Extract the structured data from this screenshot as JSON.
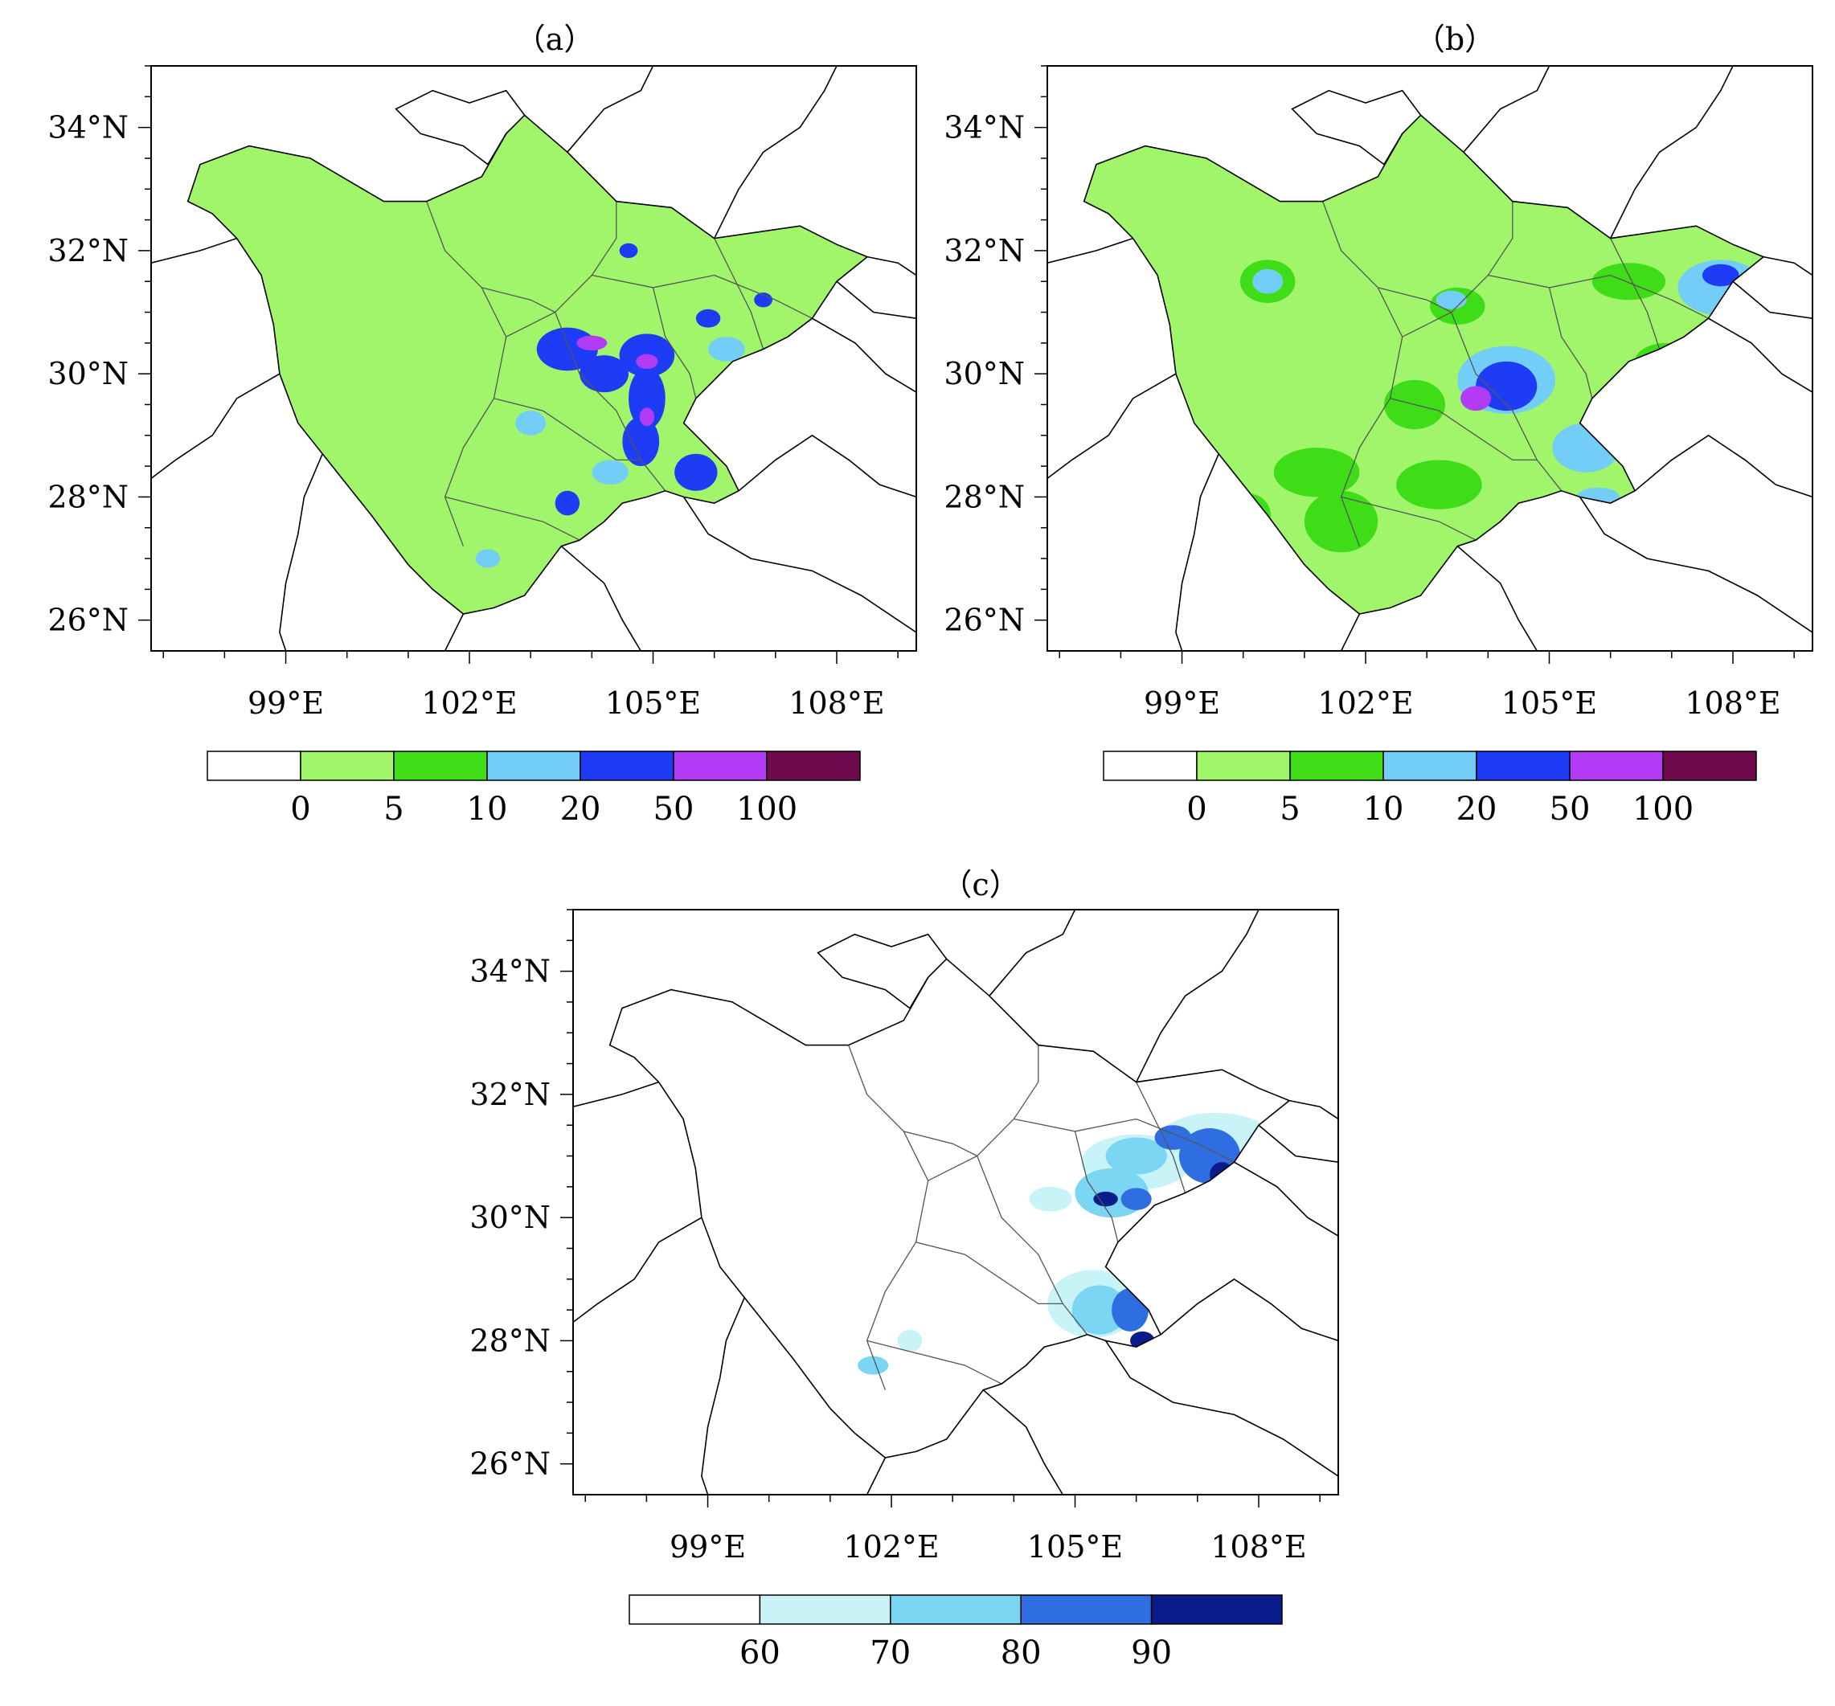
{
  "panels": [
    {
      "id": "a",
      "title": "（a）",
      "x_ticks": [
        "99°E",
        "102°E",
        "105°E",
        "108°E"
      ],
      "y_ticks": [
        "26°N",
        "28°N",
        "30°N",
        "32°N",
        "34°N"
      ],
      "x_tick_values": [
        99,
        102,
        105,
        108
      ],
      "y_tick_values": [
        26,
        28,
        30,
        32,
        34
      ],
      "lon_range": [
        96.8,
        109.3
      ],
      "lat_range": [
        25.5,
        35.0
      ],
      "colorbar": {
        "colors": [
          "#ffffff",
          "#a0f56a",
          "#3fdc18",
          "#72cdf7",
          "#1e3cf5",
          "#b23cf5",
          "#6e0a4e"
        ],
        "labels": [
          "0",
          "5",
          "10",
          "20",
          "50",
          "100"
        ]
      }
    },
    {
      "id": "b",
      "title": "（b）",
      "x_ticks": [
        "99°E",
        "102°E",
        "105°E",
        "108°E"
      ],
      "y_ticks": [
        "26°N",
        "28°N",
        "30°N",
        "32°N",
        "34°N"
      ],
      "x_tick_values": [
        99,
        102,
        105,
        108
      ],
      "y_tick_values": [
        26,
        28,
        30,
        32,
        34
      ],
      "lon_range": [
        96.8,
        109.3
      ],
      "lat_range": [
        25.5,
        35.0
      ],
      "colorbar": {
        "colors": [
          "#ffffff",
          "#a0f56a",
          "#3fdc18",
          "#72cdf7",
          "#1e3cf5",
          "#b23cf5",
          "#6e0a4e"
        ],
        "labels": [
          "0",
          "5",
          "10",
          "20",
          "50",
          "100"
        ]
      }
    },
    {
      "id": "c",
      "title": "（c）",
      "x_ticks": [
        "99°E",
        "102°E",
        "105°E",
        "108°E"
      ],
      "y_ticks": [
        "26°N",
        "28°N",
        "30°N",
        "32°N",
        "34°N"
      ],
      "x_tick_values": [
        99,
        102,
        105,
        108
      ],
      "y_tick_values": [
        26,
        28,
        30,
        32,
        34
      ],
      "lon_range": [
        96.8,
        109.3
      ],
      "lat_range": [
        25.5,
        35.0
      ],
      "colorbar": {
        "colors": [
          "#ffffff",
          "#c8f4f8",
          "#7ad6f2",
          "#2f6ee0",
          "#0a1c8c"
        ],
        "labels": [
          "60",
          "70",
          "80",
          "90"
        ]
      }
    }
  ]
}
